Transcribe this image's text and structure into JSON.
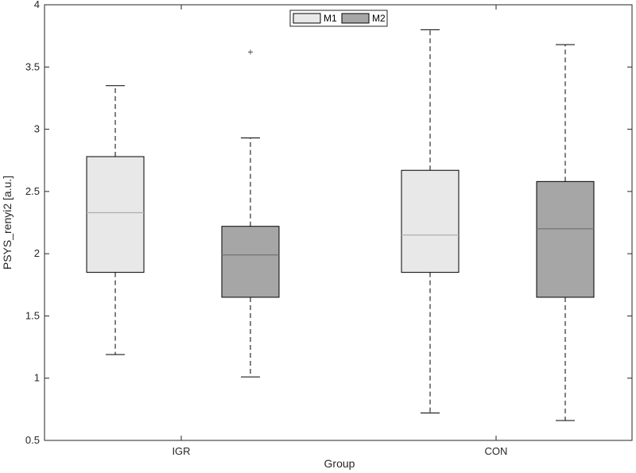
{
  "chart_data": {
    "type": "boxplot",
    "categories": [
      "IGR",
      "CON"
    ],
    "xlabel": "Group",
    "ylabel": "PSYS_renyi2 [a.u.]",
    "ylim": [
      0.5,
      4
    ],
    "yticks": [
      0.5,
      1,
      1.5,
      2,
      2.5,
      3,
      3.5,
      4
    ],
    "ytick_labels": [
      "0.5",
      "1",
      "1.5",
      "2",
      "2.5",
      "3",
      "3.5",
      "4"
    ],
    "grid": false,
    "legend_position": "top-center",
    "series": [
      {
        "name": "M1",
        "color": "#e8e8e8",
        "median_color": "#b0b0b0",
        "boxes": [
          {
            "whisker_low": 1.19,
            "q1": 1.85,
            "median": 2.33,
            "q3": 2.78,
            "whisker_high": 3.35,
            "outliers": []
          },
          {
            "whisker_low": 0.72,
            "q1": 1.85,
            "median": 2.15,
            "q3": 2.67,
            "whisker_high": 3.8,
            "outliers": []
          }
        ]
      },
      {
        "name": "M2",
        "color": "#a6a6a6",
        "median_color": "#6e6e6e",
        "boxes": [
          {
            "whisker_low": 1.01,
            "q1": 1.65,
            "median": 1.99,
            "q3": 2.22,
            "whisker_high": 2.93,
            "outliers": [
              3.62
            ]
          },
          {
            "whisker_low": 0.66,
            "q1": 1.65,
            "median": 2.2,
            "q3": 2.58,
            "whisker_high": 3.68,
            "outliers": []
          }
        ]
      }
    ]
  }
}
